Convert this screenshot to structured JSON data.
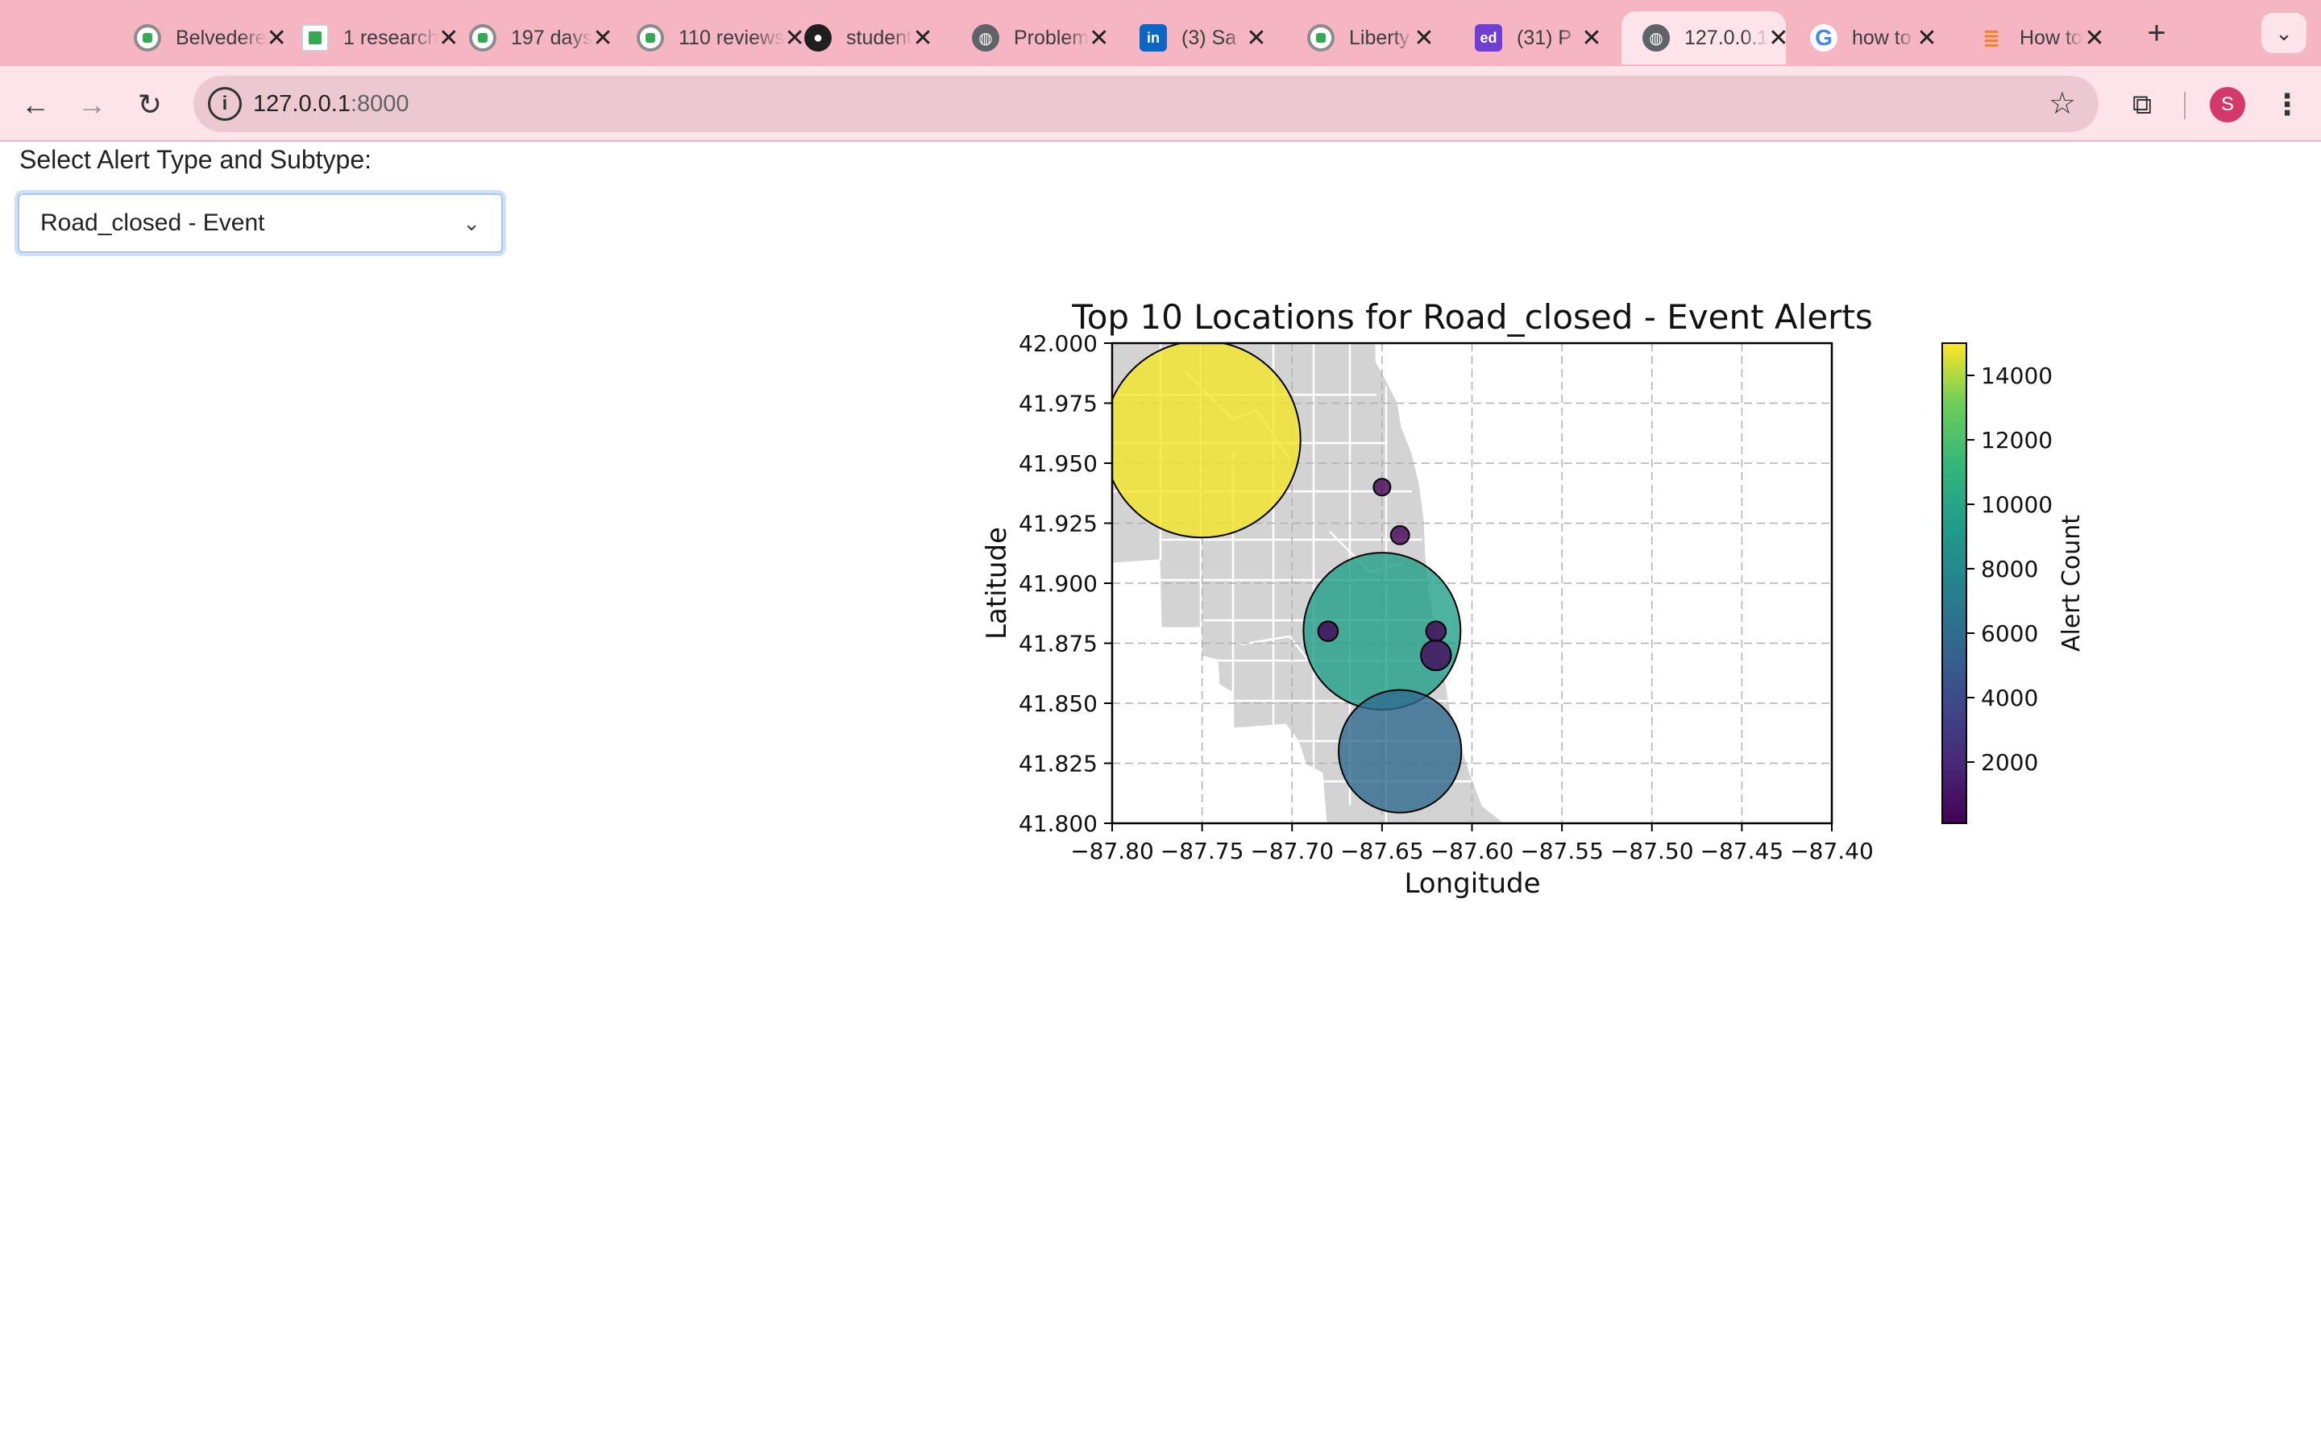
{
  "browser": {
    "tabs": [
      {
        "label": "Belvedere",
        "icon": "ring"
      },
      {
        "label": "1 research",
        "icon": "sheet"
      },
      {
        "label": "197 days",
        "icon": "ring"
      },
      {
        "label": "110 reviews",
        "icon": "ring"
      },
      {
        "label": "student",
        "icon": "gh"
      },
      {
        "label": "Problem",
        "icon": "globe"
      },
      {
        "label": "(3) Sa",
        "icon": "li"
      },
      {
        "label": "Liberty",
        "icon": "ring"
      },
      {
        "label": "(31) P",
        "icon": "ed"
      },
      {
        "label": "127.0.0.1",
        "icon": "globe",
        "active": true
      },
      {
        "label": "how to",
        "icon": "g"
      },
      {
        "label": "How to",
        "icon": "so"
      }
    ],
    "close_glyph": "✕",
    "new_tab_glyph": "+",
    "tab_search_glyph": "⌄",
    "url_host": "127.0.0.1",
    "url_port": ":8000",
    "profile_initial": "S"
  },
  "page": {
    "prompt": "Select Alert Type and Subtype:",
    "dropdown_value": "Road_closed - Event"
  },
  "chart_data": {
    "type": "scatter",
    "title": "Top 10 Locations for Road_closed - Event Alerts",
    "xlabel": "Longitude",
    "ylabel": "Latitude",
    "xlim": [
      -87.8,
      -87.4
    ],
    "ylim": [
      41.8,
      42.0
    ],
    "xticks": [
      "−87.80",
      "−87.75",
      "−87.70",
      "−87.65",
      "−87.60",
      "−87.55",
      "−87.50",
      "−87.45",
      "−87.40"
    ],
    "yticks": [
      "41.800",
      "41.825",
      "41.850",
      "41.875",
      "41.900",
      "41.925",
      "41.950",
      "41.975",
      "42.000"
    ],
    "grid": true,
    "colorbar": {
      "label": "Alert Count",
      "colormap": "viridis",
      "range": [
        100,
        15000
      ],
      "ticks": [
        "2000",
        "4000",
        "6000",
        "8000",
        "10000",
        "12000",
        "14000"
      ]
    },
    "points": [
      {
        "lon": -87.75,
        "lat": 41.96,
        "count": 14900
      },
      {
        "lon": -87.65,
        "lat": 41.88,
        "count": 9500
      },
      {
        "lon": -87.64,
        "lat": 41.83,
        "count": 5800
      },
      {
        "lon": -87.62,
        "lat": 41.87,
        "count": 350
      },
      {
        "lon": -87.68,
        "lat": 41.88,
        "count": 150
      },
      {
        "lon": -87.62,
        "lat": 41.88,
        "count": 150
      },
      {
        "lon": -87.64,
        "lat": 41.92,
        "count": 130
      },
      {
        "lon": -87.65,
        "lat": 41.94,
        "count": 110
      }
    ]
  }
}
